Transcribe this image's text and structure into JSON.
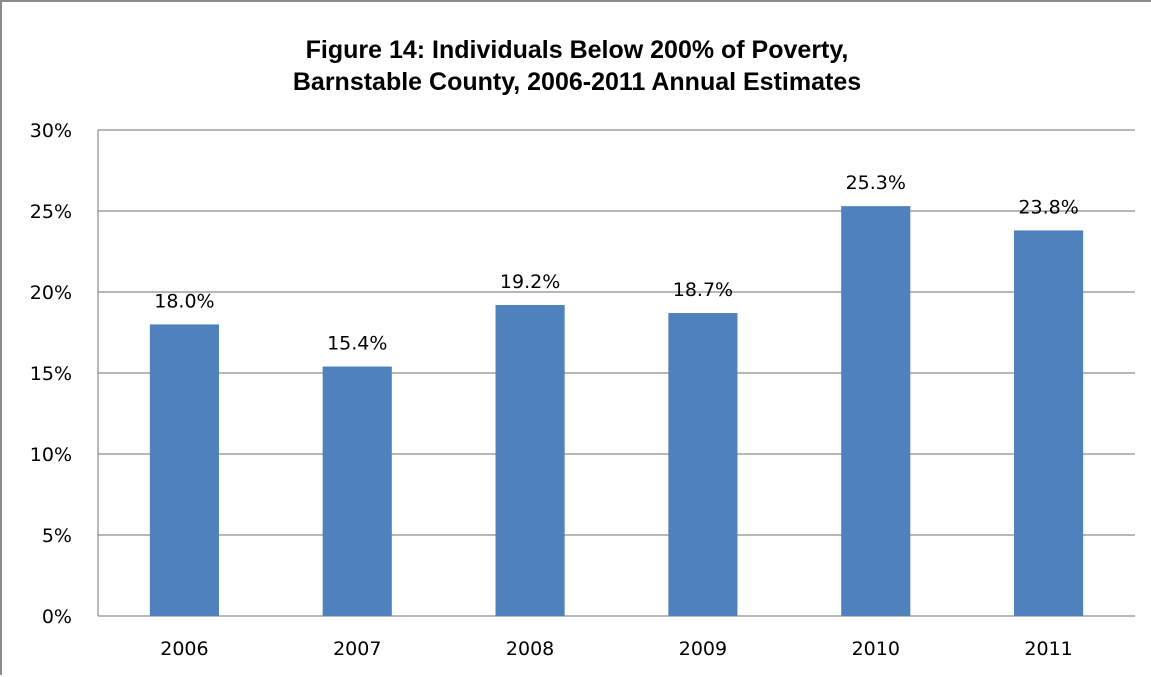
{
  "chart_data": {
    "type": "bar",
    "title_lines": [
      "Figure 14: Individuals Below 200% of Poverty,",
      "Barnstable County, 2006-2011 Annual Estimates"
    ],
    "categories": [
      "2006",
      "2007",
      "2008",
      "2009",
      "2010",
      "2011"
    ],
    "values": [
      18.0,
      15.4,
      19.2,
      18.7,
      25.3,
      23.8
    ],
    "data_labels": [
      "18.0%",
      "15.4%",
      "19.2%",
      "18.7%",
      "25.3%",
      "23.8%"
    ],
    "ylim": [
      0,
      30
    ],
    "y_ticks": [
      0,
      5,
      10,
      15,
      20,
      25,
      30
    ],
    "y_tick_labels": [
      "0%",
      "5%",
      "10%",
      "15%",
      "20%",
      "25%",
      "30%"
    ],
    "xlabel": "",
    "ylabel": "",
    "grid": true,
    "legend": "none",
    "colors": {
      "bar": "#4f81bd",
      "gridline": "#8c8c8c",
      "axis": "#8c8c8c",
      "text": "#000000"
    }
  }
}
